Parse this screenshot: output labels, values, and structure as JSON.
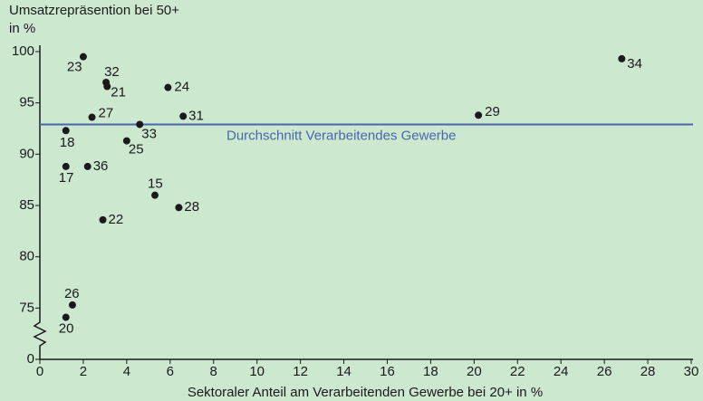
{
  "chart_data": {
    "type": "scatter",
    "y_title": [
      "Umsatzrepräsention bei 50+",
      "in %"
    ],
    "x_title": "Sektoraler Anteil am Verarbeitenden Gewerbe bei 20+ in %",
    "series": [
      {
        "color": "#1a1a1a",
        "labels": [
          "23",
          "32",
          "21",
          "24",
          "27",
          "31",
          "33",
          "18",
          "25",
          "17",
          "36",
          "15",
          "28",
          "22",
          "29",
          "34",
          "26",
          "20"
        ],
        "x": [
          2.0,
          3.05,
          3.1,
          5.9,
          2.4,
          6.6,
          4.6,
          1.2,
          4.0,
          1.2,
          2.2,
          5.3,
          6.4,
          2.9,
          20.2,
          26.8,
          1.5,
          1.2
        ],
        "values": [
          99.5,
          97.0,
          96.6,
          96.5,
          93.6,
          93.7,
          92.9,
          92.3,
          91.3,
          88.8,
          88.8,
          86.0,
          84.8,
          83.6,
          93.8,
          99.3,
          75.3,
          74.1
        ]
      }
    ],
    "reference_line": {
      "value": 92.9,
      "label": "Durchschnitt Verarbeitendes Gewerbe",
      "color": "#4a66ae"
    },
    "xlim": [
      0,
      30
    ],
    "xticks": [
      0,
      2,
      4,
      6,
      8,
      10,
      12,
      14,
      16,
      18,
      20,
      22,
      24,
      26,
      28,
      30
    ],
    "ylim": [
      70,
      100
    ],
    "yticks": [
      0,
      75,
      80,
      85,
      90,
      95,
      100
    ],
    "axis_break": true
  }
}
